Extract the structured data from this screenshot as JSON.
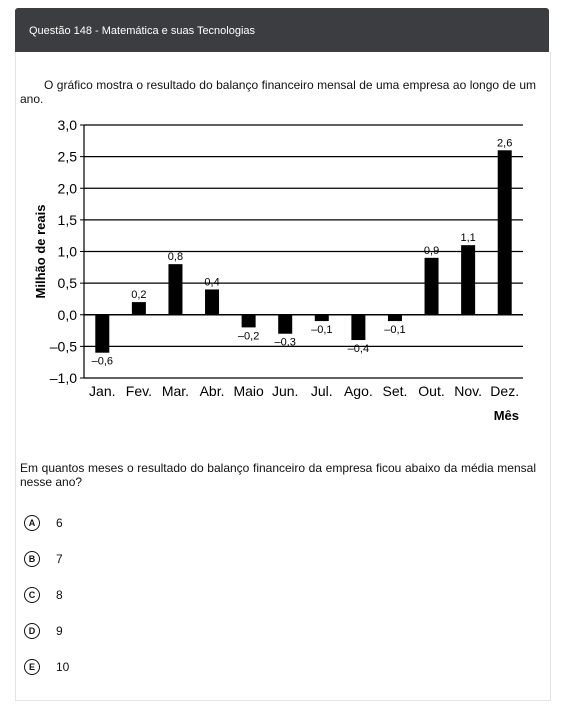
{
  "header": {
    "title": "Questão 148 - Matemática e suas Tecnologias"
  },
  "intro": "O gráfico mostra o resultado do balanço financeiro mensal de uma empresa ao longo de um ano.",
  "chart_data": {
    "type": "bar",
    "categories": [
      "Jan.",
      "Fev.",
      "Mar.",
      "Abr.",
      "Maio",
      "Jun.",
      "Jul.",
      "Ago.",
      "Set.",
      "Out.",
      "Nov.",
      "Dez."
    ],
    "values": [
      -0.6,
      0.2,
      0.8,
      0.4,
      -0.2,
      -0.3,
      -0.1,
      -0.4,
      -0.1,
      0.9,
      1.1,
      2.6
    ],
    "value_labels": [
      "–0,6",
      "0,2",
      "0,8",
      "0,4",
      "–0,2",
      "–0,3",
      "–0,1",
      "–0,4",
      "–0,1",
      "0,9",
      "1,1",
      "2,6"
    ],
    "yticks": [
      3.0,
      2.5,
      2.0,
      1.5,
      1.0,
      0.5,
      0.0,
      -0.5,
      -1.0
    ],
    "ytick_labels": [
      "3,0",
      "2,5",
      "2,0",
      "1,5",
      "1,0",
      "0,5",
      "0,0",
      "–0,5",
      "–1,0"
    ],
    "ylim": [
      -1.0,
      3.0
    ],
    "ylabel": "Milhão de reais",
    "xlabel": "Mês",
    "grid": "horizontal",
    "bar_color": "#000000"
  },
  "question": "Em quantos meses o resultado do balanço financeiro da empresa ficou abaixo da média mensal nesse ano?",
  "options": [
    {
      "letter": "A",
      "text": "6"
    },
    {
      "letter": "B",
      "text": "7"
    },
    {
      "letter": "C",
      "text": "8"
    },
    {
      "letter": "D",
      "text": "9"
    },
    {
      "letter": "E",
      "text": "10"
    }
  ]
}
